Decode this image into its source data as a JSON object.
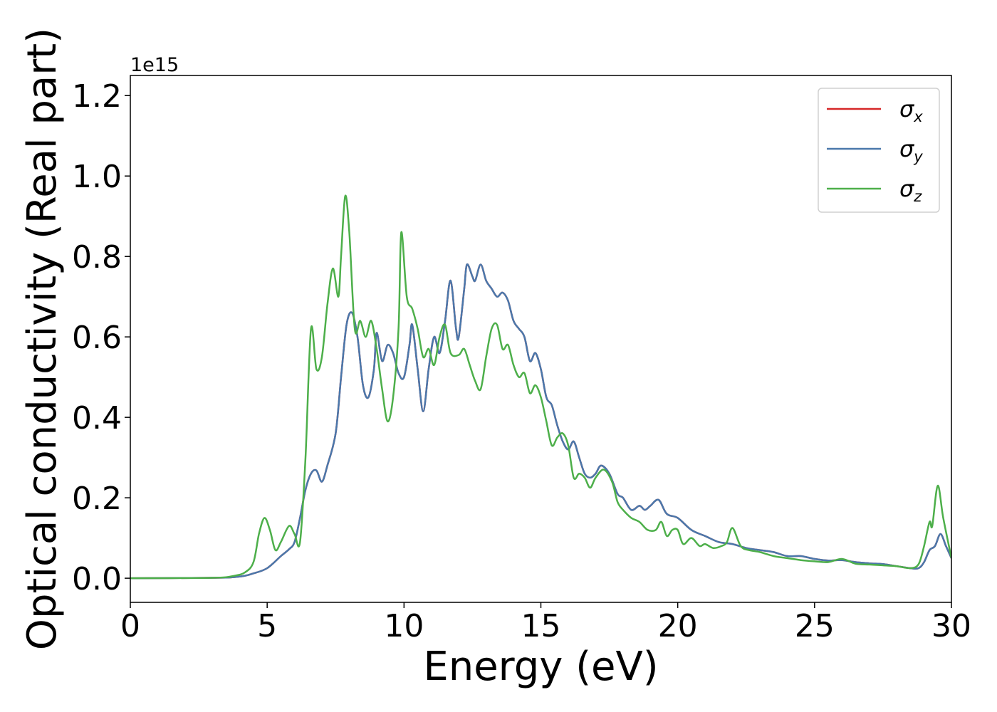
{
  "chart_data": {
    "type": "line",
    "xlabel": "Energy (eV)",
    "ylabel": "Optical conductivity (Real part)",
    "y_offset_label": "1e15",
    "xlim": [
      0,
      30
    ],
    "ylim": [
      -0.06,
      1.25
    ],
    "x_ticks": [
      0,
      5,
      10,
      15,
      20,
      25,
      30
    ],
    "x_tick_labels": [
      "0",
      "5",
      "10",
      "15",
      "20",
      "25",
      "30"
    ],
    "y_ticks": [
      0.0,
      0.2,
      0.4,
      0.6,
      0.8,
      1.0,
      1.2
    ],
    "y_tick_labels": [
      "0.0",
      "0.2",
      "0.4",
      "0.6",
      "0.8",
      "1.0",
      "1.2"
    ],
    "grid": false,
    "legend_position": "top-right",
    "series": [
      {
        "name": "σ",
        "subscript": "x",
        "color": "#d62728",
        "points": [
          [
            0,
            0
          ],
          [
            3,
            0.001
          ],
          [
            4,
            0.004
          ],
          [
            4.5,
            0.012
          ],
          [
            5,
            0.025
          ],
          [
            5.5,
            0.055
          ],
          [
            5.8,
            0.072
          ],
          [
            6.0,
            0.09
          ],
          [
            6.2,
            0.15
          ],
          [
            6.4,
            0.22
          ],
          [
            6.6,
            0.26
          ],
          [
            6.8,
            0.268
          ],
          [
            7.0,
            0.24
          ],
          [
            7.2,
            0.28
          ],
          [
            7.5,
            0.36
          ],
          [
            7.7,
            0.5
          ],
          [
            7.9,
            0.63
          ],
          [
            8.1,
            0.66
          ],
          [
            8.3,
            0.6
          ],
          [
            8.5,
            0.48
          ],
          [
            8.7,
            0.45
          ],
          [
            8.9,
            0.52
          ],
          [
            9.0,
            0.61
          ],
          [
            9.2,
            0.54
          ],
          [
            9.4,
            0.58
          ],
          [
            9.6,
            0.56
          ],
          [
            9.8,
            0.51
          ],
          [
            10.0,
            0.5
          ],
          [
            10.2,
            0.58
          ],
          [
            10.3,
            0.63
          ],
          [
            10.5,
            0.52
          ],
          [
            10.7,
            0.415
          ],
          [
            10.9,
            0.52
          ],
          [
            11.1,
            0.6
          ],
          [
            11.3,
            0.56
          ],
          [
            11.5,
            0.64
          ],
          [
            11.7,
            0.74
          ],
          [
            11.9,
            0.62
          ],
          [
            12.0,
            0.6
          ],
          [
            12.2,
            0.72
          ],
          [
            12.3,
            0.78
          ],
          [
            12.5,
            0.75
          ],
          [
            12.6,
            0.74
          ],
          [
            12.8,
            0.78
          ],
          [
            13.0,
            0.74
          ],
          [
            13.2,
            0.72
          ],
          [
            13.4,
            0.7
          ],
          [
            13.6,
            0.71
          ],
          [
            13.8,
            0.69
          ],
          [
            14.0,
            0.64
          ],
          [
            14.2,
            0.62
          ],
          [
            14.4,
            0.6
          ],
          [
            14.6,
            0.54
          ],
          [
            14.8,
            0.56
          ],
          [
            15.0,
            0.52
          ],
          [
            15.2,
            0.45
          ],
          [
            15.4,
            0.43
          ],
          [
            15.6,
            0.38
          ],
          [
            15.8,
            0.34
          ],
          [
            16.0,
            0.32
          ],
          [
            16.2,
            0.34
          ],
          [
            16.4,
            0.3
          ],
          [
            16.6,
            0.26
          ],
          [
            16.8,
            0.25
          ],
          [
            17.0,
            0.26
          ],
          [
            17.2,
            0.28
          ],
          [
            17.5,
            0.26
          ],
          [
            17.8,
            0.21
          ],
          [
            18.0,
            0.2
          ],
          [
            18.3,
            0.17
          ],
          [
            18.6,
            0.18
          ],
          [
            18.8,
            0.17
          ],
          [
            19.0,
            0.18
          ],
          [
            19.3,
            0.195
          ],
          [
            19.6,
            0.16
          ],
          [
            20.0,
            0.15
          ],
          [
            20.5,
            0.12
          ],
          [
            21.0,
            0.105
          ],
          [
            21.5,
            0.09
          ],
          [
            22.0,
            0.085
          ],
          [
            22.5,
            0.075
          ],
          [
            23.0,
            0.07
          ],
          [
            23.5,
            0.065
          ],
          [
            24.0,
            0.055
          ],
          [
            24.5,
            0.055
          ],
          [
            25.0,
            0.048
          ],
          [
            25.5,
            0.044
          ],
          [
            26.0,
            0.045
          ],
          [
            26.5,
            0.04
          ],
          [
            27.0,
            0.037
          ],
          [
            27.5,
            0.035
          ],
          [
            28.0,
            0.03
          ],
          [
            28.5,
            0.025
          ],
          [
            28.8,
            0.025
          ],
          [
            29.0,
            0.04
          ],
          [
            29.2,
            0.07
          ],
          [
            29.4,
            0.08
          ],
          [
            29.6,
            0.11
          ],
          [
            29.8,
            0.08
          ],
          [
            30.0,
            0.05
          ]
        ]
      },
      {
        "name": "σ",
        "subscript": "y",
        "color": "#4a78ab",
        "points": [
          [
            0,
            0
          ],
          [
            3,
            0.001
          ],
          [
            4,
            0.004
          ],
          [
            4.5,
            0.012
          ],
          [
            5,
            0.025
          ],
          [
            5.5,
            0.055
          ],
          [
            5.8,
            0.072
          ],
          [
            6.0,
            0.09
          ],
          [
            6.2,
            0.15
          ],
          [
            6.4,
            0.22
          ],
          [
            6.6,
            0.26
          ],
          [
            6.8,
            0.268
          ],
          [
            7.0,
            0.24
          ],
          [
            7.2,
            0.28
          ],
          [
            7.5,
            0.36
          ],
          [
            7.7,
            0.5
          ],
          [
            7.9,
            0.63
          ],
          [
            8.1,
            0.66
          ],
          [
            8.3,
            0.6
          ],
          [
            8.5,
            0.48
          ],
          [
            8.7,
            0.45
          ],
          [
            8.9,
            0.52
          ],
          [
            9.0,
            0.61
          ],
          [
            9.2,
            0.54
          ],
          [
            9.4,
            0.58
          ],
          [
            9.6,
            0.56
          ],
          [
            9.8,
            0.51
          ],
          [
            10.0,
            0.5
          ],
          [
            10.2,
            0.58
          ],
          [
            10.3,
            0.63
          ],
          [
            10.5,
            0.52
          ],
          [
            10.7,
            0.415
          ],
          [
            10.9,
            0.52
          ],
          [
            11.1,
            0.6
          ],
          [
            11.3,
            0.56
          ],
          [
            11.5,
            0.64
          ],
          [
            11.7,
            0.74
          ],
          [
            11.9,
            0.62
          ],
          [
            12.0,
            0.6
          ],
          [
            12.2,
            0.72
          ],
          [
            12.3,
            0.78
          ],
          [
            12.5,
            0.75
          ],
          [
            12.6,
            0.74
          ],
          [
            12.8,
            0.78
          ],
          [
            13.0,
            0.74
          ],
          [
            13.2,
            0.72
          ],
          [
            13.4,
            0.7
          ],
          [
            13.6,
            0.71
          ],
          [
            13.8,
            0.69
          ],
          [
            14.0,
            0.64
          ],
          [
            14.2,
            0.62
          ],
          [
            14.4,
            0.6
          ],
          [
            14.6,
            0.54
          ],
          [
            14.8,
            0.56
          ],
          [
            15.0,
            0.52
          ],
          [
            15.2,
            0.45
          ],
          [
            15.4,
            0.43
          ],
          [
            15.6,
            0.38
          ],
          [
            15.8,
            0.34
          ],
          [
            16.0,
            0.32
          ],
          [
            16.2,
            0.34
          ],
          [
            16.4,
            0.3
          ],
          [
            16.6,
            0.26
          ],
          [
            16.8,
            0.25
          ],
          [
            17.0,
            0.26
          ],
          [
            17.2,
            0.28
          ],
          [
            17.5,
            0.26
          ],
          [
            17.8,
            0.21
          ],
          [
            18.0,
            0.2
          ],
          [
            18.3,
            0.17
          ],
          [
            18.6,
            0.18
          ],
          [
            18.8,
            0.17
          ],
          [
            19.0,
            0.18
          ],
          [
            19.3,
            0.195
          ],
          [
            19.6,
            0.16
          ],
          [
            20.0,
            0.15
          ],
          [
            20.5,
            0.12
          ],
          [
            21.0,
            0.105
          ],
          [
            21.5,
            0.09
          ],
          [
            22.0,
            0.085
          ],
          [
            22.5,
            0.075
          ],
          [
            23.0,
            0.07
          ],
          [
            23.5,
            0.065
          ],
          [
            24.0,
            0.055
          ],
          [
            24.5,
            0.055
          ],
          [
            25.0,
            0.048
          ],
          [
            25.5,
            0.044
          ],
          [
            26.0,
            0.045
          ],
          [
            26.5,
            0.04
          ],
          [
            27.0,
            0.037
          ],
          [
            27.5,
            0.035
          ],
          [
            28.0,
            0.03
          ],
          [
            28.5,
            0.025
          ],
          [
            28.8,
            0.025
          ],
          [
            29.0,
            0.04
          ],
          [
            29.2,
            0.07
          ],
          [
            29.4,
            0.08
          ],
          [
            29.6,
            0.11
          ],
          [
            29.8,
            0.08
          ],
          [
            30.0,
            0.05
          ]
        ]
      },
      {
        "name": "σ",
        "subscript": "z",
        "color": "#4daf4a",
        "points": [
          [
            0,
            0
          ],
          [
            3,
            0.001
          ],
          [
            3.8,
            0.006
          ],
          [
            4.2,
            0.015
          ],
          [
            4.5,
            0.04
          ],
          [
            4.7,
            0.11
          ],
          [
            4.9,
            0.15
          ],
          [
            5.1,
            0.12
          ],
          [
            5.3,
            0.07
          ],
          [
            5.5,
            0.09
          ],
          [
            5.8,
            0.13
          ],
          [
            6.0,
            0.11
          ],
          [
            6.2,
            0.09
          ],
          [
            6.4,
            0.3
          ],
          [
            6.6,
            0.62
          ],
          [
            6.8,
            0.52
          ],
          [
            7.0,
            0.55
          ],
          [
            7.2,
            0.68
          ],
          [
            7.4,
            0.77
          ],
          [
            7.6,
            0.7
          ],
          [
            7.7,
            0.8
          ],
          [
            7.85,
            0.95
          ],
          [
            8.0,
            0.86
          ],
          [
            8.2,
            0.62
          ],
          [
            8.4,
            0.64
          ],
          [
            8.6,
            0.6
          ],
          [
            8.8,
            0.64
          ],
          [
            9.0,
            0.57
          ],
          [
            9.2,
            0.47
          ],
          [
            9.4,
            0.39
          ],
          [
            9.6,
            0.45
          ],
          [
            9.8,
            0.62
          ],
          [
            9.9,
            0.86
          ],
          [
            10.1,
            0.7
          ],
          [
            10.3,
            0.67
          ],
          [
            10.5,
            0.62
          ],
          [
            10.7,
            0.55
          ],
          [
            10.9,
            0.57
          ],
          [
            11.1,
            0.53
          ],
          [
            11.3,
            0.6
          ],
          [
            11.5,
            0.63
          ],
          [
            11.7,
            0.56
          ],
          [
            12.0,
            0.555
          ],
          [
            12.2,
            0.57
          ],
          [
            12.4,
            0.53
          ],
          [
            12.6,
            0.49
          ],
          [
            12.8,
            0.47
          ],
          [
            13.0,
            0.55
          ],
          [
            13.2,
            0.62
          ],
          [
            13.4,
            0.63
          ],
          [
            13.6,
            0.57
          ],
          [
            13.8,
            0.58
          ],
          [
            14.0,
            0.53
          ],
          [
            14.2,
            0.5
          ],
          [
            14.4,
            0.51
          ],
          [
            14.6,
            0.46
          ],
          [
            14.8,
            0.48
          ],
          [
            15.0,
            0.45
          ],
          [
            15.2,
            0.39
          ],
          [
            15.4,
            0.33
          ],
          [
            15.6,
            0.35
          ],
          [
            15.8,
            0.36
          ],
          [
            16.0,
            0.33
          ],
          [
            16.2,
            0.25
          ],
          [
            16.4,
            0.26
          ],
          [
            16.6,
            0.25
          ],
          [
            16.8,
            0.225
          ],
          [
            17.0,
            0.25
          ],
          [
            17.3,
            0.27
          ],
          [
            17.6,
            0.24
          ],
          [
            17.8,
            0.19
          ],
          [
            18.0,
            0.17
          ],
          [
            18.3,
            0.15
          ],
          [
            18.6,
            0.14
          ],
          [
            18.9,
            0.12
          ],
          [
            19.2,
            0.12
          ],
          [
            19.4,
            0.14
          ],
          [
            19.6,
            0.105
          ],
          [
            19.8,
            0.12
          ],
          [
            20.0,
            0.12
          ],
          [
            20.2,
            0.085
          ],
          [
            20.5,
            0.1
          ],
          [
            20.8,
            0.08
          ],
          [
            21.0,
            0.085
          ],
          [
            21.3,
            0.075
          ],
          [
            21.6,
            0.08
          ],
          [
            21.8,
            0.09
          ],
          [
            22.0,
            0.125
          ],
          [
            22.3,
            0.08
          ],
          [
            22.6,
            0.07
          ],
          [
            23.0,
            0.065
          ],
          [
            23.5,
            0.055
          ],
          [
            24.0,
            0.05
          ],
          [
            24.5,
            0.045
          ],
          [
            25.0,
            0.042
          ],
          [
            25.5,
            0.04
          ],
          [
            26.0,
            0.048
          ],
          [
            26.5,
            0.036
          ],
          [
            27.0,
            0.034
          ],
          [
            27.5,
            0.032
          ],
          [
            28.0,
            0.03
          ],
          [
            28.5,
            0.025
          ],
          [
            28.8,
            0.035
          ],
          [
            29.0,
            0.08
          ],
          [
            29.2,
            0.14
          ],
          [
            29.3,
            0.13
          ],
          [
            29.5,
            0.23
          ],
          [
            29.7,
            0.15
          ],
          [
            30.0,
            0.05
          ]
        ]
      }
    ]
  }
}
